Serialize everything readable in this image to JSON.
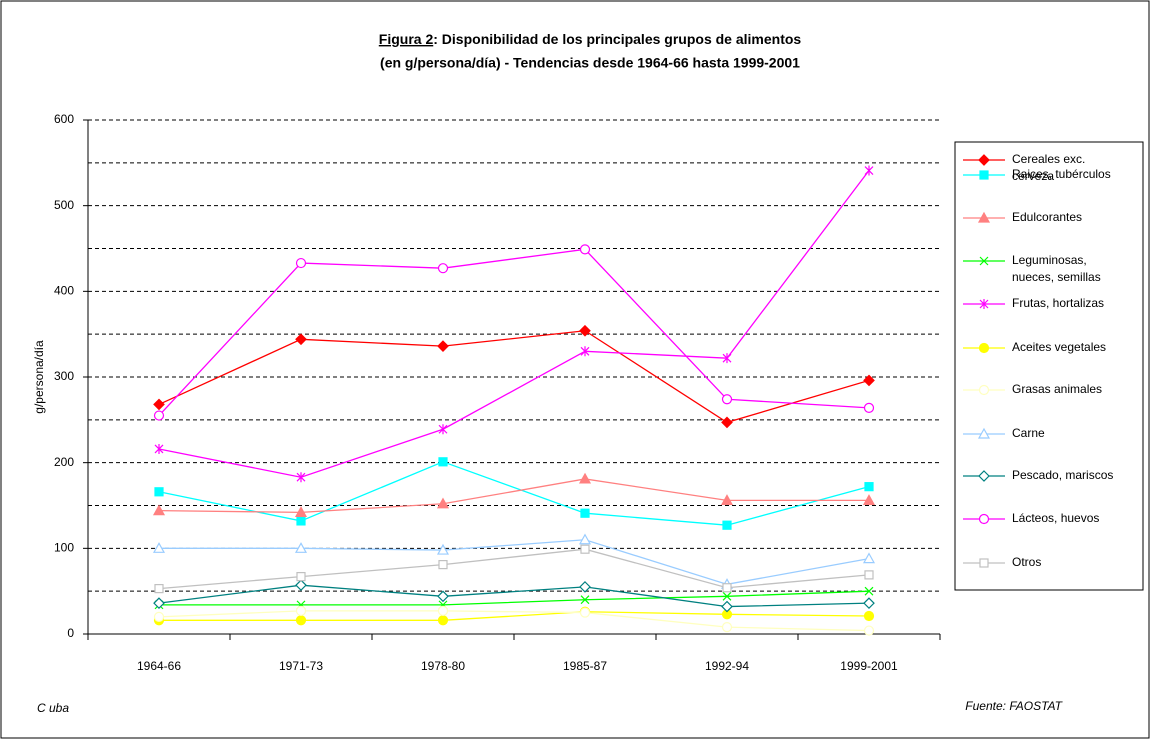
{
  "chart_data": {
    "type": "line",
    "title": [
      "Figura 2: Disponibilidad de los principales grupos de alimentos",
      "(en g/persona/día) - Tendencias desde 1964-66 hasta 1999-2001"
    ],
    "ylabel": "g/persona/día",
    "country": "C uba",
    "source": "Fuente: FAOSTAT",
    "categories": [
      "1964-66",
      "1971-73",
      "1978-80",
      "1985-87",
      "1992-94",
      "1999-2001"
    ],
    "ylim": [
      0,
      600
    ],
    "yticks": [
      0,
      100,
      200,
      300,
      400,
      500,
      600
    ],
    "minor_yticks": [
      50,
      150,
      250,
      350,
      450,
      550
    ],
    "grid": true,
    "legend": "right",
    "series": [
      {
        "name": "Cereales exc. cerveza",
        "color": "#ff0000",
        "marker": "diamond",
        "filled": true,
        "values": [
          268,
          344,
          336,
          354,
          247,
          296
        ]
      },
      {
        "name": "Raices, tubérculos",
        "color": "#00ffff",
        "marker": "square",
        "filled": true,
        "values": [
          166,
          132,
          201,
          141,
          127,
          172
        ]
      },
      {
        "name": "Edulcorantes",
        "color": "#ff8080",
        "marker": "triangle",
        "filled": true,
        "values": [
          144,
          142,
          152,
          181,
          156,
          156
        ]
      },
      {
        "name": "Leguminosas, nueces, semillas",
        "color": "#00ff00",
        "marker": "x",
        "filled": false,
        "values": [
          34,
          34,
          34,
          40,
          44,
          50
        ]
      },
      {
        "name": "Frutas, hortalizas",
        "color": "#ff00ff",
        "marker": "star",
        "filled": false,
        "values": [
          216,
          183,
          239,
          330,
          322,
          541
        ]
      },
      {
        "name": "Aceites vegetales",
        "color": "#ffff00",
        "marker": "circle",
        "filled": true,
        "values": [
          16,
          16,
          16,
          26,
          23,
          21
        ]
      },
      {
        "name": "Grasas animales",
        "color": "#ffffc0",
        "marker": "circle",
        "filled": false,
        "values": [
          20,
          27,
          27,
          25,
          8,
          4
        ]
      },
      {
        "name": "Carne",
        "color": "#99ccff",
        "marker": "triangle",
        "filled": false,
        "values": [
          100,
          100,
          98,
          110,
          58,
          88
        ]
      },
      {
        "name": "Pescado, mariscos",
        "color": "#008080",
        "marker": "diamond",
        "filled": false,
        "values": [
          36,
          57,
          44,
          55,
          32,
          36
        ]
      },
      {
        "name": "Lácteos, huevos",
        "color": "#ff00ff",
        "marker": "circle",
        "filled": false,
        "values": [
          255,
          433,
          427,
          449,
          274,
          264
        ]
      },
      {
        "name": "Otros",
        "color": "#c0c0c0",
        "marker": "square",
        "filled": false,
        "values": [
          53,
          67,
          81,
          99,
          54,
          69
        ]
      }
    ]
  }
}
